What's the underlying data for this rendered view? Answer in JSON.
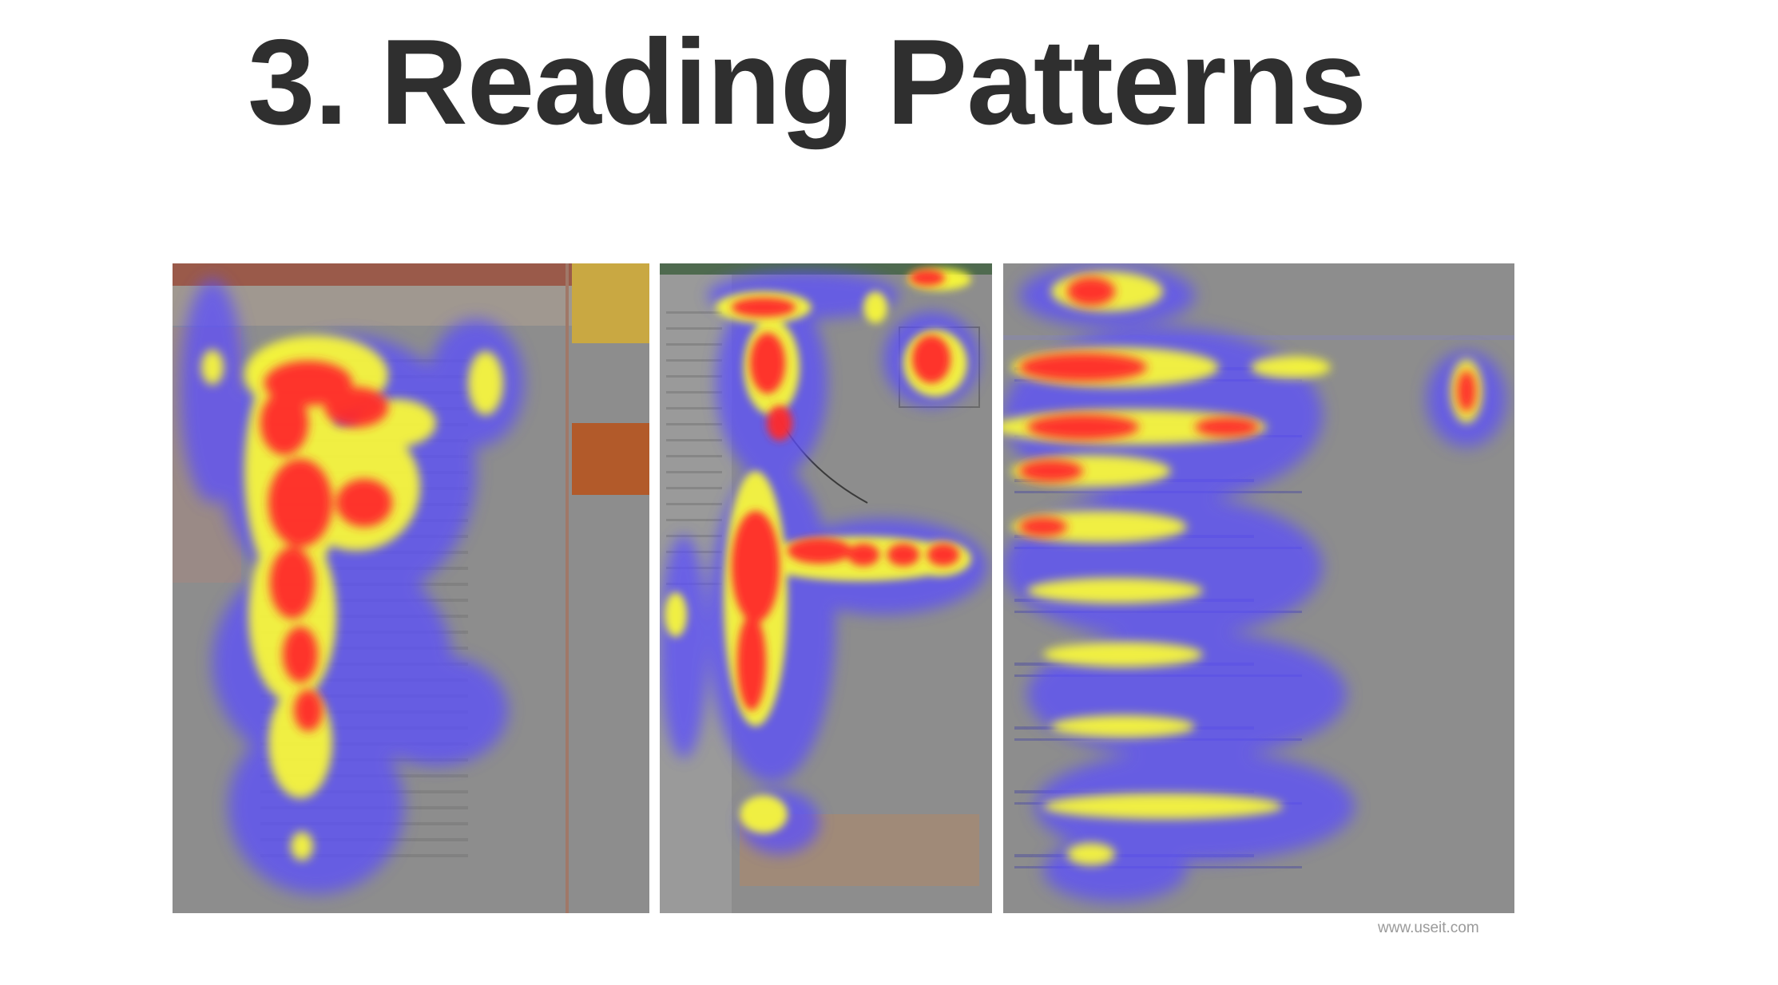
{
  "slide": {
    "title": "3. Reading Patterns",
    "credit": "www.useit.com"
  },
  "heatmaps": [
    {
      "name": "heatmap-article-page",
      "description_shown": false
    },
    {
      "name": "heatmap-product-page",
      "description_shown": false
    },
    {
      "name": "heatmap-search-results",
      "description_shown": false
    }
  ],
  "colors": {
    "background": "#ffffff",
    "title": "#2f2f2f",
    "page_gray": "#8d8d8d",
    "heat_low": "#5a4dff",
    "heat_mid": "#ffff30",
    "heat_high": "#ff2a2a",
    "credit": "#9a9a9a"
  }
}
